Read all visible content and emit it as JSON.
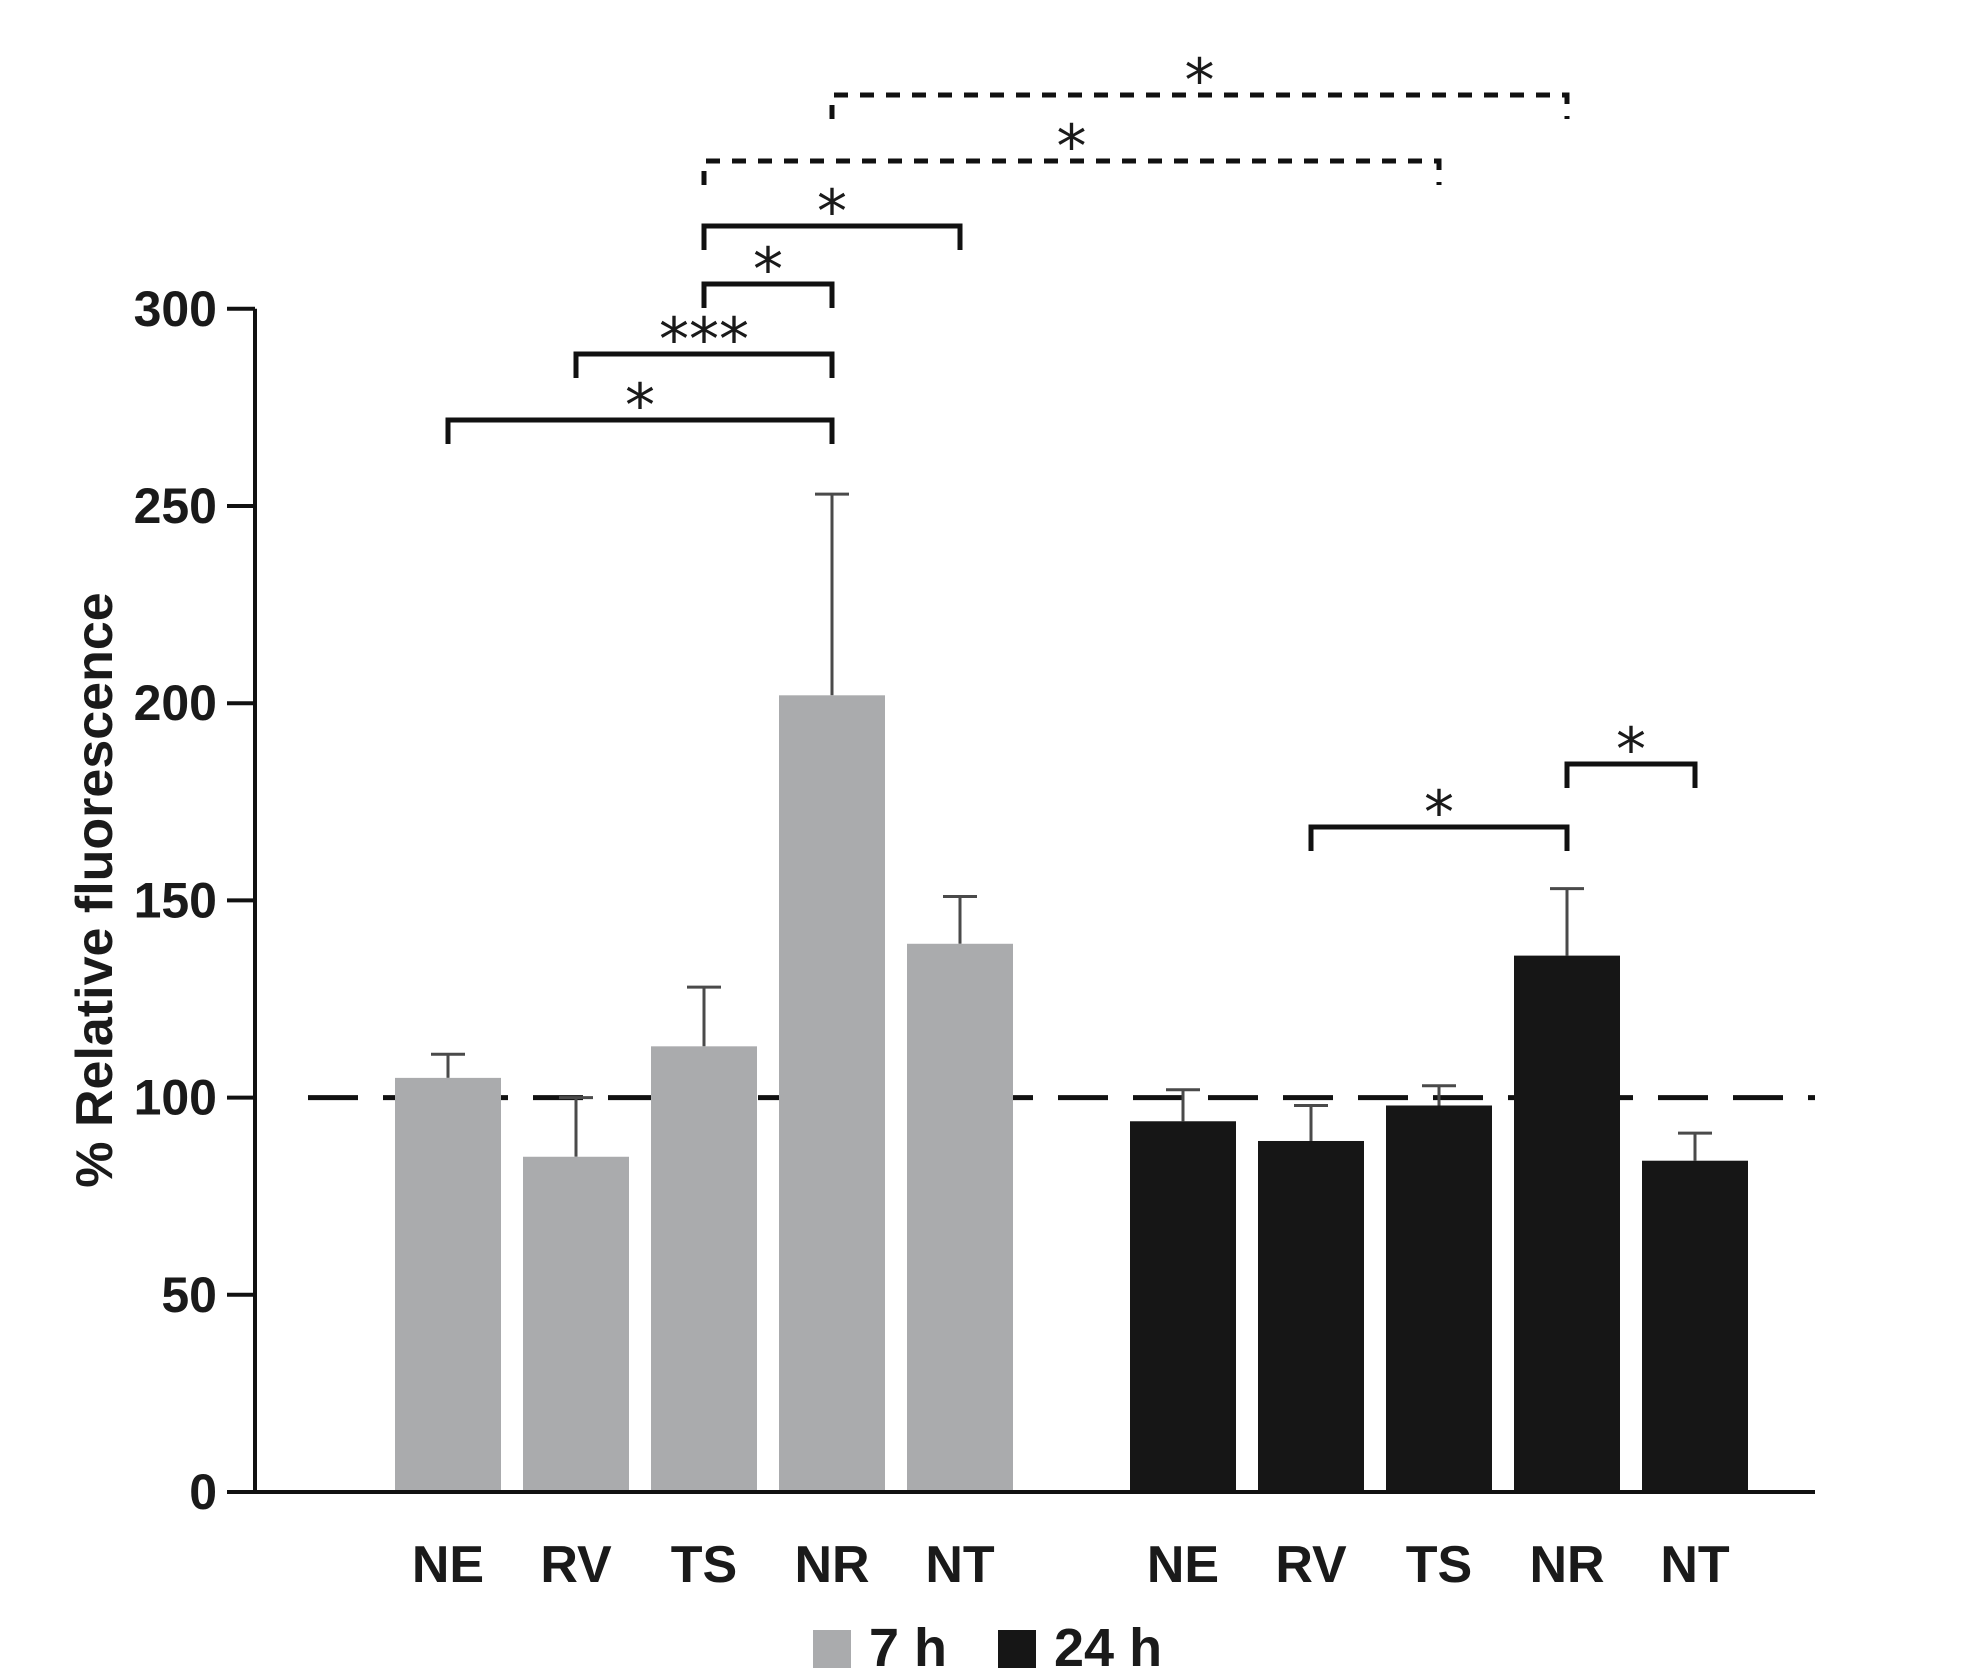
{
  "chart_data": {
    "type": "bar",
    "ylabel": "% Relative fluorescence",
    "xlabel": "",
    "ylim": [
      0,
      300
    ],
    "yticks": [
      0,
      50,
      100,
      150,
      200,
      250,
      300
    ],
    "reference_line": 100,
    "categories": [
      "NE",
      "RV",
      "TS",
      "NR",
      "NT"
    ],
    "series": [
      {
        "name": "7 h",
        "color": "#aaabad",
        "values": [
          105,
          85,
          113,
          202,
          139
        ],
        "errors": [
          6,
          15,
          15,
          51,
          12
        ]
      },
      {
        "name": "24 h",
        "color": "#161616",
        "values": [
          94,
          89,
          98,
          136,
          84
        ],
        "errors": [
          8,
          9,
          5,
          17,
          7
        ]
      }
    ],
    "significance": [
      {
        "from": [
          0,
          0
        ],
        "to": [
          0,
          3
        ],
        "label": "*",
        "style": "solid"
      },
      {
        "from": [
          0,
          1
        ],
        "to": [
          0,
          3
        ],
        "label": "***",
        "style": "solid"
      },
      {
        "from": [
          0,
          2
        ],
        "to": [
          0,
          3
        ],
        "label": "*",
        "style": "solid"
      },
      {
        "from": [
          0,
          2
        ],
        "to": [
          0,
          4
        ],
        "label": "*",
        "style": "solid"
      },
      {
        "from": [
          0,
          2
        ],
        "to": [
          1,
          2
        ],
        "label": "*",
        "style": "dashed"
      },
      {
        "from": [
          0,
          3
        ],
        "to": [
          1,
          3
        ],
        "label": "*",
        "style": "dashed"
      },
      {
        "from": [
          1,
          1
        ],
        "to": [
          1,
          3
        ],
        "label": "*",
        "style": "solid"
      },
      {
        "from": [
          1,
          3
        ],
        "to": [
          1,
          4
        ],
        "label": "*",
        "style": "solid"
      }
    ],
    "legend_position": "bottom-center"
  }
}
